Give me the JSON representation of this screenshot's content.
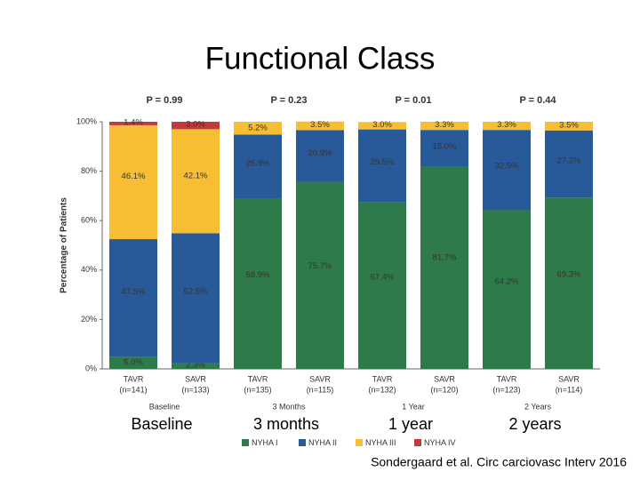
{
  "chart_data": {
    "type": "stacked_bar",
    "title": "Functional Class",
    "y_label": "Percentage of Patients",
    "p_values": [
      "P = 0.99",
      "P = 0.23",
      "P = 0.01",
      "P = 0.44"
    ],
    "groups": [
      "Baseline",
      "3 Months",
      "1 Year",
      "2 Years"
    ],
    "categories": [
      "TAVR",
      "SAVR",
      "TAVR",
      "SAVR",
      "TAVR",
      "SAVR",
      "TAVR",
      "SAVR"
    ],
    "sample_sizes": [
      "(n=141)",
      "(n=133)",
      "(n=135)",
      "(n=115)",
      "(n=132)",
      "(n=120)",
      "(n=123)",
      "(n=114)"
    ],
    "series": [
      {
        "name": "NYHA I",
        "color": "#2e7a4b",
        "values": [
          5.0,
          2.3,
          68.9,
          75.7,
          67.4,
          81.7,
          64.2,
          69.3
        ],
        "value_labels": [
          "5.0%",
          "2.3%",
          "68.9%",
          "75.7%",
          "67.4%",
          "81.7%",
          "64.2%",
          "69.3%"
        ]
      },
      {
        "name": "NYHA II",
        "color": "#285a99",
        "values": [
          47.5,
          52.6,
          25.9,
          20.9,
          29.5,
          15.0,
          32.5,
          27.2
        ],
        "value_labels": [
          "47.5%",
          "52.6%",
          "25.9%",
          "20.9%",
          "29.5%",
          "15.0%",
          "32.5%",
          "27.2%"
        ]
      },
      {
        "name": "NYHA III",
        "color": "#f7be33",
        "values": [
          46.1,
          42.1,
          5.2,
          3.5,
          3.0,
          3.3,
          3.3,
          3.5
        ],
        "value_labels": [
          "46.1%",
          "42.1%",
          "5.2%",
          "3.5%",
          "3.0%",
          "3.3%",
          "3.3%",
          "3.5%"
        ]
      },
      {
        "name": "NYHA IV",
        "color": "#c23a3c",
        "values": [
          1.4,
          3.0,
          null,
          null,
          null,
          null,
          null,
          null
        ],
        "value_labels": [
          "1.4%",
          "3.0%",
          null,
          null,
          null,
          null,
          null,
          null
        ]
      }
    ],
    "ylim": [
      0,
      100
    ],
    "yticks": [
      {
        "value": 0,
        "label": "0%"
      },
      {
        "value": 20,
        "label": "20%"
      },
      {
        "value": 40,
        "label": "40%"
      },
      {
        "value": 60,
        "label": "60%"
      },
      {
        "value": 80,
        "label": "80%"
      },
      {
        "value": 100,
        "label": "100%"
      }
    ],
    "slide_labels": [
      "Baseline",
      "3 months",
      "1 year",
      "2 years"
    ],
    "citation": "Sondergaard et al. Circ carciovasc Interv 2016"
  }
}
